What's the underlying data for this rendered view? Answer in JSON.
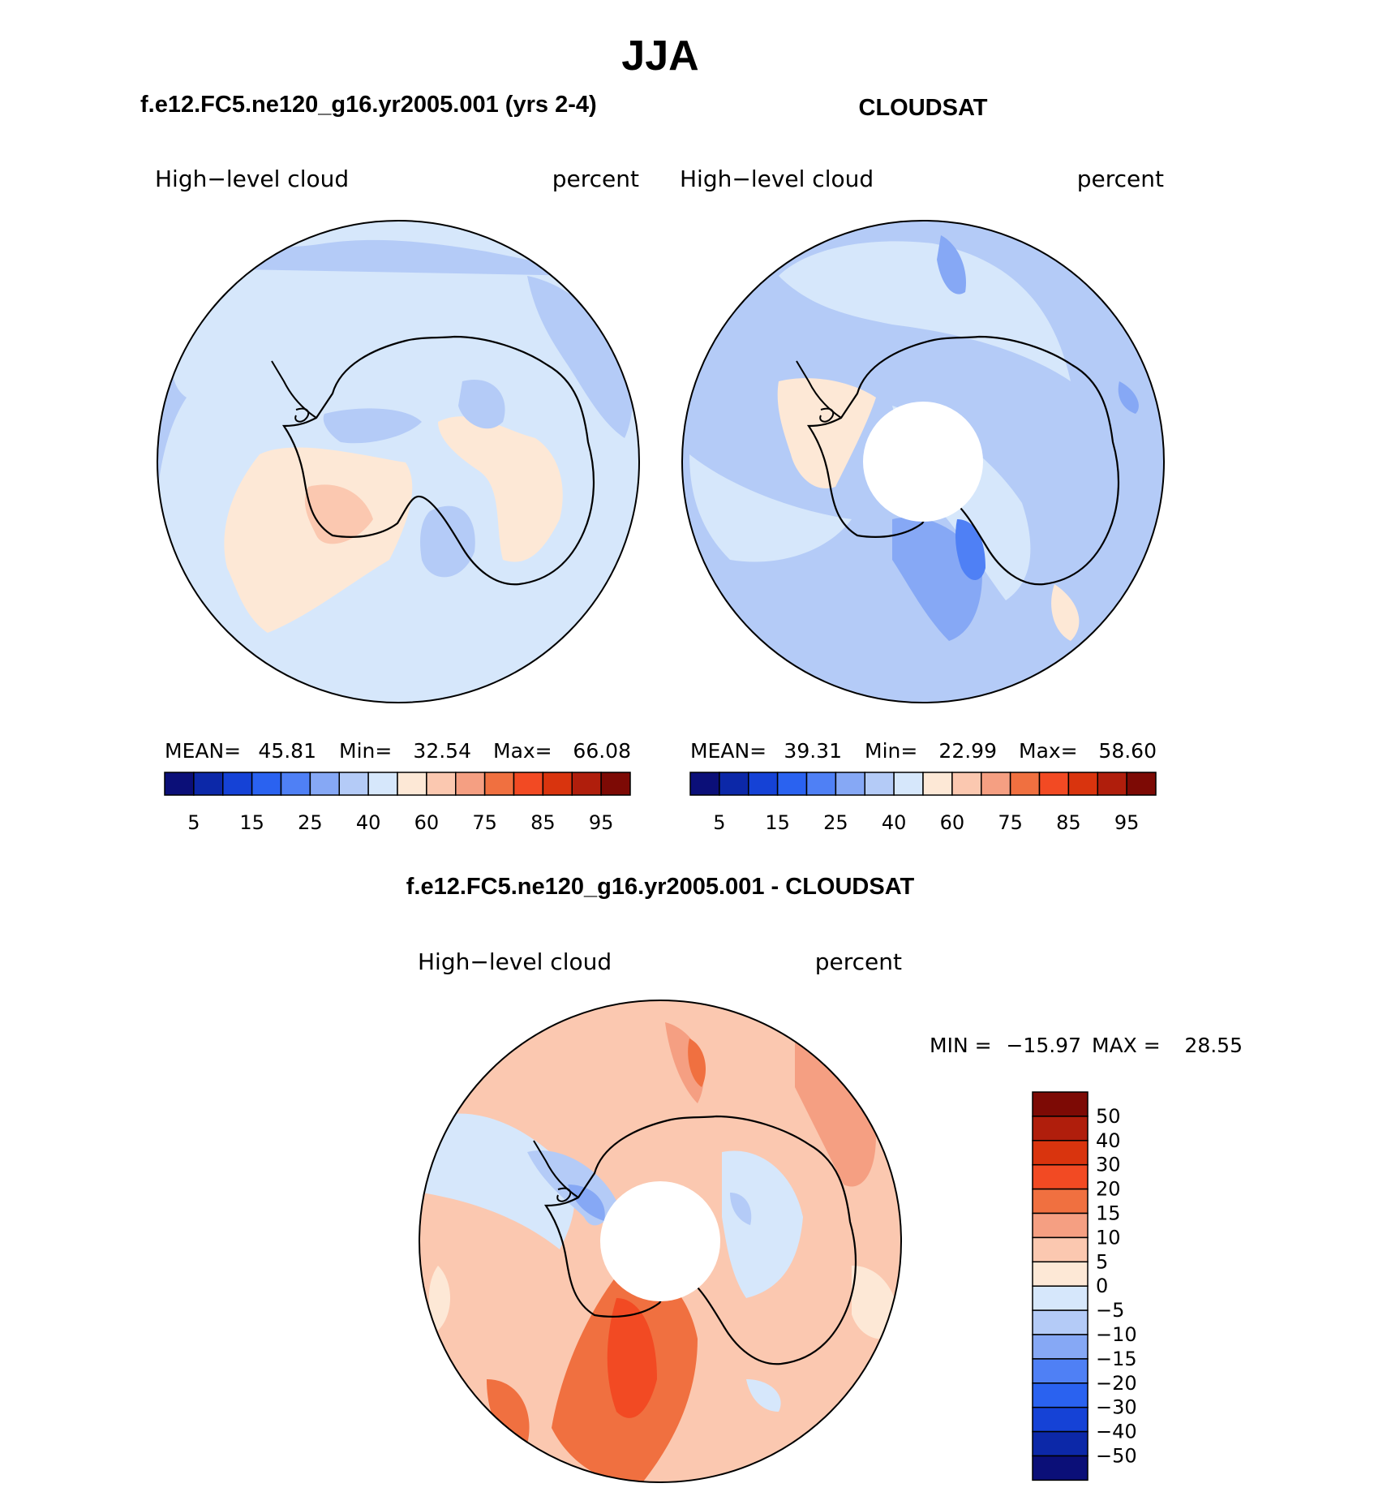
{
  "title": "JJA",
  "panels": {
    "model": {
      "case_title": "f.e12.FC5.ne120_g16.yr2005.001 (yrs 2-4)",
      "field": "High−level cloud",
      "units": "percent",
      "stats": {
        "mean_label": "MEAN=",
        "mean": "45.81",
        "min_label": "Min=",
        "min": "32.54",
        "max_label": "Max=",
        "max": "66.08"
      }
    },
    "obs": {
      "case_title": "CLOUDSAT",
      "field": "High−level cloud",
      "units": "percent",
      "stats": {
        "mean_label": "MEAN=",
        "mean": "39.31",
        "min_label": "Min=",
        "min": "22.99",
        "max_label": "Max=",
        "max": "58.60"
      }
    },
    "diff": {
      "case_title": "f.e12.FC5.ne120_g16.yr2005.001 - CLOUDSAT",
      "field": "High−level cloud",
      "units": "percent",
      "stats": {
        "min_label": "MIN =",
        "min": "−15.97",
        "max_label": "MAX =",
        "max": "28.55"
      }
    }
  },
  "colorbar_main": {
    "tick_labels": [
      "5",
      "15",
      "25",
      "40",
      "60",
      "75",
      "85",
      "95"
    ],
    "colors": [
      "#0b0f78",
      "#0c28a8",
      "#1542d6",
      "#2a62f0",
      "#4f80f5",
      "#86a8f5",
      "#b4cbf7",
      "#d6e7fb",
      "#fde8d6",
      "#fbc8b0",
      "#f59f82",
      "#f07040",
      "#f24a23",
      "#d9340e",
      "#b01e0c",
      "#7d0a05"
    ]
  },
  "colorbar_diff": {
    "tick_labels": [
      "50",
      "40",
      "30",
      "20",
      "15",
      "10",
      "5",
      "0",
      "−5",
      "−10",
      "−15",
      "−20",
      "−30",
      "−40",
      "−50"
    ],
    "colors": [
      "#7d0a05",
      "#b01e0c",
      "#d9340e",
      "#f24a23",
      "#f07040",
      "#f59f82",
      "#fbc8b0",
      "#fde8d6",
      "#d6e7fb",
      "#b4cbf7",
      "#86a8f5",
      "#4f80f5",
      "#2a62f0",
      "#1542d6",
      "#0c28a8",
      "#0b0f78"
    ]
  },
  "chart_data": [
    {
      "type": "heatmap",
      "title": "f.e12.FC5.ne120_g16.yr2005.001 (yrs 2-4)",
      "subtitle": "High−level cloud (percent), JJA, south polar projection",
      "levels": [
        5,
        10,
        15,
        20,
        25,
        30,
        40,
        50,
        60,
        70,
        75,
        80,
        85,
        90,
        95
      ],
      "mean": 45.81,
      "min": 32.54,
      "max": 66.08
    },
    {
      "type": "heatmap",
      "title": "CLOUDSAT",
      "subtitle": "High−level cloud (percent), JJA, south polar projection",
      "levels": [
        5,
        10,
        15,
        20,
        25,
        30,
        40,
        50,
        60,
        70,
        75,
        80,
        85,
        90,
        95
      ],
      "mean": 39.31,
      "min": 22.99,
      "max": 58.6
    },
    {
      "type": "heatmap",
      "title": "f.e12.FC5.ne120_g16.yr2005.001 - CLOUDSAT",
      "subtitle": "High−level cloud (percent) difference, JJA",
      "levels": [
        -50,
        -40,
        -30,
        -20,
        -15,
        -10,
        -5,
        0,
        5,
        10,
        15,
        20,
        30,
        40,
        50
      ],
      "min": -15.97,
      "max": 28.55
    }
  ]
}
